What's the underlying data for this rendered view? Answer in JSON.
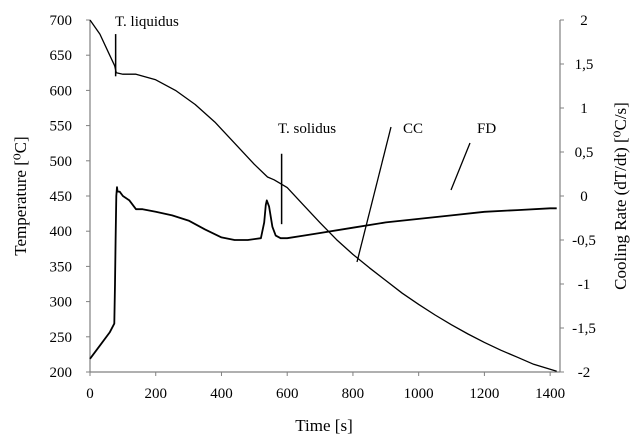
{
  "chart_data": {
    "type": "line",
    "xlabel": "Time [s]",
    "ylabel_left": "Temperature [⁰C]",
    "ylabel_right": "Cooling Rate (dT/dt) [⁰C/s]",
    "x_ticks": [
      "0",
      "200",
      "400",
      "600",
      "800",
      "1000",
      "1200",
      "1400"
    ],
    "y_left_ticks": [
      "200",
      "250",
      "300",
      "350",
      "400",
      "450",
      "500",
      "550",
      "600",
      "650",
      "700"
    ],
    "y_right_ticks": [
      "-2",
      "-1,5",
      "-1",
      "-0,5",
      "0",
      "0,5",
      "1",
      "1,5",
      "2"
    ],
    "xlim": [
      0,
      1430
    ],
    "ylim_left": [
      200,
      700
    ],
    "ylim_right": [
      -2,
      2
    ],
    "grid": false,
    "annotations": {
      "t_liquidus": "T. liquidus",
      "t_solidus": "T. solidus",
      "cc": "CC",
      "fd": "FD"
    },
    "series": [
      {
        "axis": "left",
        "points": [
          [
            0,
            700
          ],
          [
            30,
            680
          ],
          [
            60,
            650
          ],
          [
            75,
            635
          ],
          [
            80,
            625
          ],
          [
            100,
            623
          ],
          [
            140,
            623
          ],
          [
            200,
            615
          ],
          [
            260,
            600
          ],
          [
            320,
            580
          ],
          [
            380,
            555
          ],
          [
            440,
            525
          ],
          [
            500,
            495
          ],
          [
            540,
            477
          ],
          [
            560,
            473
          ],
          [
            600,
            462
          ],
          [
            650,
            437
          ],
          [
            700,
            412
          ],
          [
            750,
            388
          ],
          [
            800,
            367
          ],
          [
            850,
            348
          ],
          [
            900,
            330
          ],
          [
            950,
            312
          ],
          [
            1000,
            296
          ],
          [
            1050,
            281
          ],
          [
            1100,
            267
          ],
          [
            1150,
            254
          ],
          [
            1200,
            242
          ],
          [
            1250,
            231
          ],
          [
            1300,
            221
          ],
          [
            1350,
            211
          ],
          [
            1420,
            201
          ]
        ]
      },
      {
        "axis": "right",
        "points": [
          [
            0,
            -1.85
          ],
          [
            30,
            -1.7
          ],
          [
            60,
            -1.55
          ],
          [
            74,
            -1.45
          ],
          [
            76,
            -1.0
          ],
          [
            78,
            -0.5
          ],
          [
            80,
            0
          ],
          [
            82,
            0.1
          ],
          [
            84,
            0.05
          ],
          [
            90,
            0.05
          ],
          [
            100,
            0.0
          ],
          [
            120,
            -0.05
          ],
          [
            140,
            -0.15
          ],
          [
            160,
            -0.15
          ],
          [
            200,
            -0.18
          ],
          [
            250,
            -0.22
          ],
          [
            300,
            -0.28
          ],
          [
            350,
            -0.38
          ],
          [
            400,
            -0.47
          ],
          [
            440,
            -0.5
          ],
          [
            480,
            -0.5
          ],
          [
            520,
            -0.48
          ],
          [
            530,
            -0.3
          ],
          [
            535,
            -0.1
          ],
          [
            538,
            -0.05
          ],
          [
            545,
            -0.12
          ],
          [
            555,
            -0.35
          ],
          [
            565,
            -0.45
          ],
          [
            580,
            -0.48
          ],
          [
            600,
            -0.48
          ],
          [
            650,
            -0.45
          ],
          [
            700,
            -0.42
          ],
          [
            800,
            -0.36
          ],
          [
            900,
            -0.3
          ],
          [
            1000,
            -0.26
          ],
          [
            1100,
            -0.22
          ],
          [
            1200,
            -0.18
          ],
          [
            1300,
            -0.16
          ],
          [
            1400,
            -0.14
          ],
          [
            1420,
            -0.14
          ]
        ]
      }
    ]
  }
}
